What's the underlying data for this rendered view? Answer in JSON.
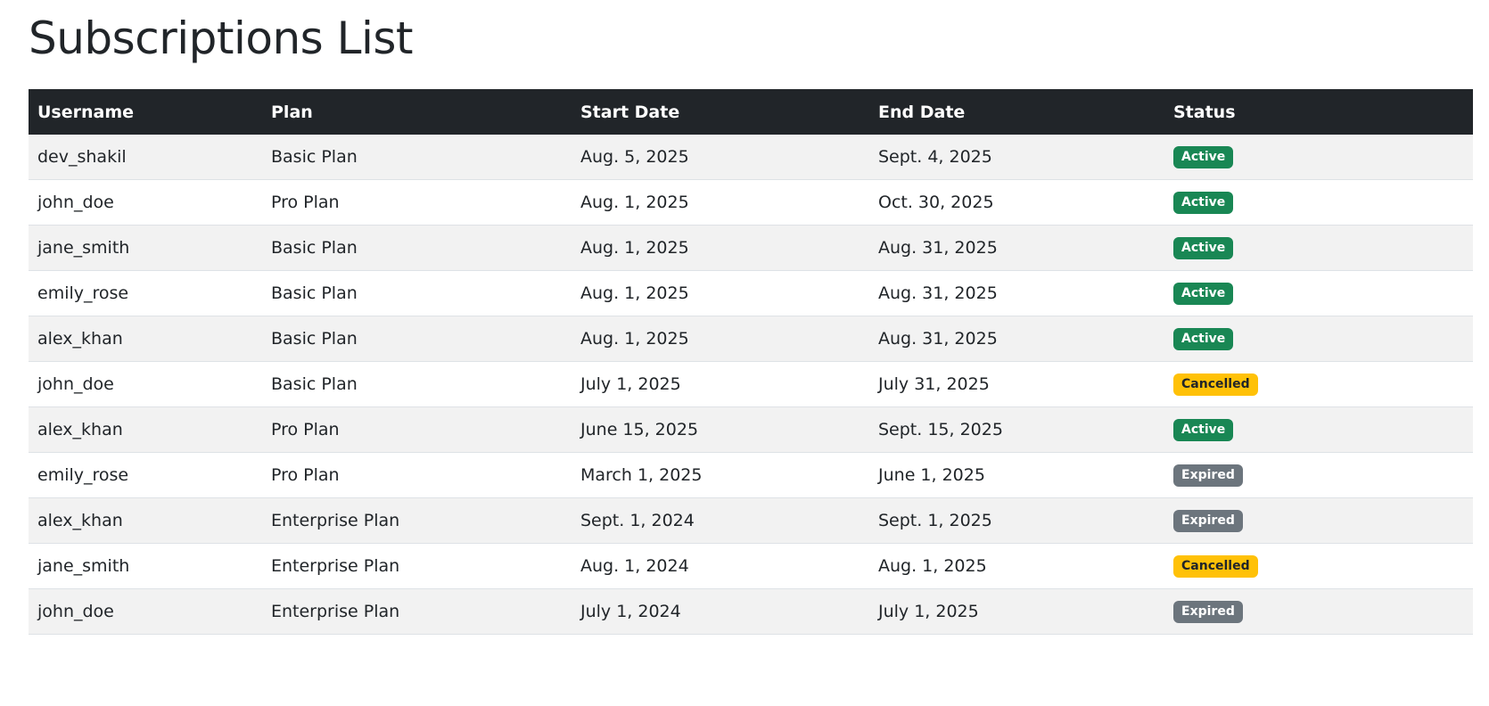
{
  "page": {
    "title": "Subscriptions List"
  },
  "table": {
    "columns": [
      "Username",
      "Plan",
      "Start Date",
      "End Date",
      "Status"
    ],
    "rows": [
      {
        "username": "dev_shakil",
        "plan": "Basic Plan",
        "start": "Aug. 5, 2025",
        "end": "Sept. 4, 2025",
        "status": "Active"
      },
      {
        "username": "john_doe",
        "plan": "Pro Plan",
        "start": "Aug. 1, 2025",
        "end": "Oct. 30, 2025",
        "status": "Active"
      },
      {
        "username": "jane_smith",
        "plan": "Basic Plan",
        "start": "Aug. 1, 2025",
        "end": "Aug. 31, 2025",
        "status": "Active"
      },
      {
        "username": "emily_rose",
        "plan": "Basic Plan",
        "start": "Aug. 1, 2025",
        "end": "Aug. 31, 2025",
        "status": "Active"
      },
      {
        "username": "alex_khan",
        "plan": "Basic Plan",
        "start": "Aug. 1, 2025",
        "end": "Aug. 31, 2025",
        "status": "Active"
      },
      {
        "username": "john_doe",
        "plan": "Basic Plan",
        "start": "July 1, 2025",
        "end": "July 31, 2025",
        "status": "Cancelled"
      },
      {
        "username": "alex_khan",
        "plan": "Pro Plan",
        "start": "June 15, 2025",
        "end": "Sept. 15, 2025",
        "status": "Active"
      },
      {
        "username": "emily_rose",
        "plan": "Pro Plan",
        "start": "March 1, 2025",
        "end": "June 1, 2025",
        "status": "Expired"
      },
      {
        "username": "alex_khan",
        "plan": "Enterprise Plan",
        "start": "Sept. 1, 2024",
        "end": "Sept. 1, 2025",
        "status": "Expired"
      },
      {
        "username": "jane_smith",
        "plan": "Enterprise Plan",
        "start": "Aug. 1, 2024",
        "end": "Aug. 1, 2025",
        "status": "Cancelled"
      },
      {
        "username": "john_doe",
        "plan": "Enterprise Plan",
        "start": "July 1, 2024",
        "end": "July 1, 2025",
        "status": "Expired"
      }
    ]
  },
  "colors": {
    "header_bg": "#212529",
    "stripe_bg": "#f2f2f2",
    "active": "#198754",
    "cancelled": "#ffc107",
    "expired": "#6c757d"
  }
}
